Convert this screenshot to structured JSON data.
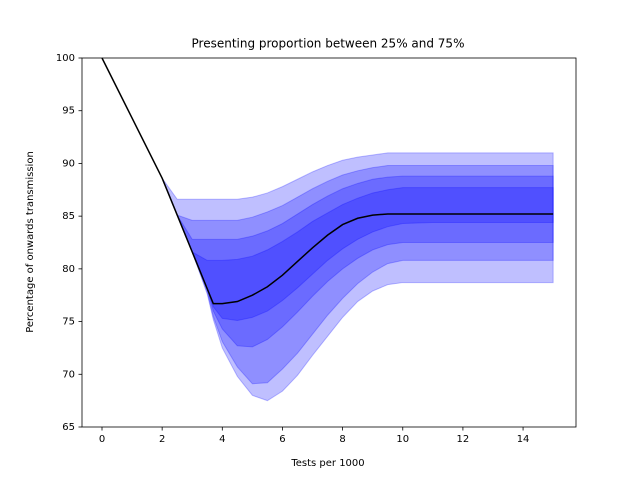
{
  "chart_data": {
    "type": "fan",
    "title": "Presenting proportion between 25% and 75%",
    "x_label": "Tests per 1000",
    "y_label": "Percentage of onwards transmission",
    "x": [
      0,
      1,
      2,
      2.5,
      3,
      3.5,
      3.7,
      4,
      4.5,
      5,
      5.5,
      6,
      6.5,
      7,
      7.5,
      8,
      8.5,
      9,
      9.5,
      10,
      11,
      12,
      13,
      14,
      15
    ],
    "values": [
      100,
      94.3,
      88.6,
      85.1,
      81.6,
      78.1,
      76.7,
      76.7,
      76.9,
      77.5,
      78.3,
      79.4,
      80.7,
      82,
      83.2,
      84.2,
      84.8,
      85.1,
      85.2,
      85.2,
      85.2,
      85.2,
      85.2,
      85.2,
      85.2
    ],
    "color": "#000000",
    "bands": [
      {
        "upper": [
          null,
          null,
          88.6,
          86.6,
          86.6,
          86.6,
          86.6,
          86.6,
          86.6,
          86.8,
          87.2,
          87.8,
          88.5,
          89.2,
          89.8,
          90.3,
          90.6,
          90.8,
          91.0,
          91.0,
          91.0,
          91.0,
          91.0,
          91.0,
          91.0
        ],
        "lower": [
          null,
          null,
          88.6,
          85.1,
          81.6,
          77.6,
          75.2,
          72.5,
          69.8,
          68.0,
          67.5,
          68.4,
          69.9,
          71.8,
          73.6,
          75.4,
          76.9,
          77.9,
          78.5,
          78.7,
          78.7,
          78.7,
          78.7,
          78.7,
          78.7
        ]
      },
      {
        "upper": [
          null,
          null,
          88.6,
          85.1,
          84.6,
          84.6,
          84.6,
          84.6,
          84.6,
          84.9,
          85.4,
          86.0,
          86.8,
          87.6,
          88.3,
          88.9,
          89.3,
          89.6,
          89.8,
          89.8,
          89.8,
          89.8,
          89.8,
          89.8,
          89.8
        ],
        "lower": [
          null,
          null,
          88.6,
          85.1,
          81.6,
          77.8,
          75.5,
          73.1,
          70.7,
          69.1,
          69.2,
          70.5,
          72.0,
          73.8,
          75.6,
          77.2,
          78.6,
          79.7,
          80.5,
          80.8,
          80.8,
          80.8,
          80.8,
          80.8,
          80.8
        ]
      },
      {
        "upper": [
          null,
          null,
          88.6,
          85.1,
          82.8,
          82.8,
          82.8,
          82.8,
          82.8,
          83.1,
          83.6,
          84.3,
          85.2,
          86.1,
          86.9,
          87.6,
          88.1,
          88.5,
          88.7,
          88.8,
          88.8,
          88.8,
          88.8,
          88.8,
          88.8
        ],
        "lower": [
          null,
          null,
          88.6,
          85.1,
          81.6,
          78.1,
          76.0,
          74.3,
          72.7,
          72.6,
          73.3,
          74.5,
          75.9,
          77.4,
          78.8,
          80.0,
          81.0,
          81.8,
          82.3,
          82.5,
          82.5,
          82.5,
          82.5,
          82.5,
          82.5
        ]
      },
      {
        "upper": [
          null,
          null,
          88.6,
          85.1,
          81.6,
          80.8,
          80.8,
          80.8,
          80.9,
          81.2,
          81.8,
          82.6,
          83.5,
          84.5,
          85.3,
          86.1,
          86.7,
          87.2,
          87.5,
          87.7,
          87.7,
          87.7,
          87.7,
          87.7,
          87.7
        ],
        "lower": [
          null,
          null,
          88.6,
          85.1,
          81.6,
          78.1,
          76.4,
          75.3,
          75.1,
          75.4,
          76.0,
          77.0,
          78.2,
          79.5,
          80.8,
          81.9,
          82.8,
          83.5,
          84.0,
          84.3,
          84.4,
          84.4,
          84.4,
          84.4,
          84.4
        ]
      }
    ],
    "band_color": "#0000ff",
    "band_alpha": 0.25,
    "xlim": [
      -0.665,
      15.76
    ],
    "ylim": [
      65,
      100
    ],
    "xticks": [
      0,
      2,
      4,
      6,
      8,
      10,
      12,
      14
    ],
    "yticks": [
      65,
      70,
      75,
      80,
      85,
      90,
      95,
      100
    ]
  }
}
